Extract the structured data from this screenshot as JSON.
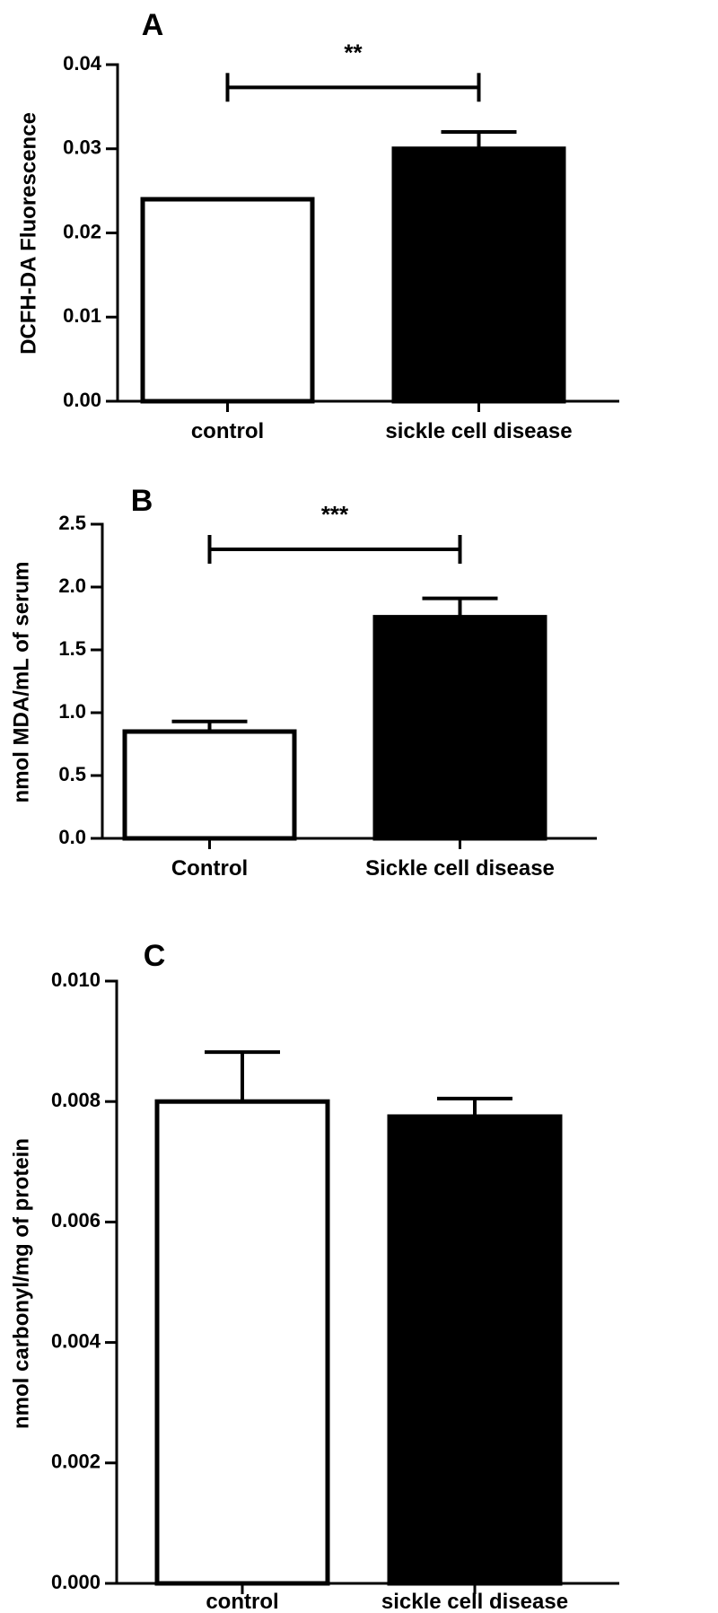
{
  "chart_data": [
    {
      "panel": "A",
      "type": "bar",
      "ylabel": "DCFH-DA Fluorescence",
      "xlabel": "",
      "categories": [
        "control",
        "sickle cell disease"
      ],
      "values": [
        0.024,
        0.03
      ],
      "errors": [
        0.0001,
        0.002
      ],
      "bar_colors": [
        "#ffffff",
        "#000000"
      ],
      "ylim": [
        0,
        0.04
      ],
      "yticks": [
        0.0,
        0.01,
        0.02,
        0.03,
        0.04
      ],
      "ytick_labels": [
        "0.00",
        "0.01",
        "0.02",
        "0.03",
        "0.04"
      ],
      "significance": {
        "label": "**",
        "between": [
          0,
          1
        ],
        "y": 0.0373
      }
    },
    {
      "panel": "B",
      "type": "bar",
      "ylabel": "nmol MDA/mL of serum",
      "xlabel": "",
      "categories": [
        "Control",
        "Sickle cell disease"
      ],
      "values": [
        0.85,
        1.76
      ],
      "errors": [
        0.08,
        0.15
      ],
      "bar_colors": [
        "#ffffff",
        "#000000"
      ],
      "ylim": [
        0,
        2.5
      ],
      "yticks": [
        0.0,
        0.5,
        1.0,
        1.5,
        2.0,
        2.5
      ],
      "ytick_labels": [
        "0.0",
        "0.5",
        "1.0",
        "1.5",
        "2.0",
        "2.5"
      ],
      "significance": {
        "label": "***",
        "between": [
          0,
          1
        ],
        "y": 2.3
      }
    },
    {
      "panel": "C",
      "type": "bar",
      "ylabel": "nmol carbonyl/mg of protein",
      "xlabel": "",
      "categories": [
        "control",
        "sickle cell disease"
      ],
      "values": [
        0.008,
        0.00775
      ],
      "errors": [
        0.00082,
        0.0003
      ],
      "bar_colors": [
        "#ffffff",
        "#000000"
      ],
      "ylim": [
        0,
        0.01
      ],
      "yticks": [
        0.0,
        0.002,
        0.004,
        0.006,
        0.008,
        0.01
      ],
      "ytick_labels": [
        "0.000",
        "0.002",
        "0.004",
        "0.006",
        "0.008",
        "0.010"
      ],
      "significance": null
    }
  ]
}
